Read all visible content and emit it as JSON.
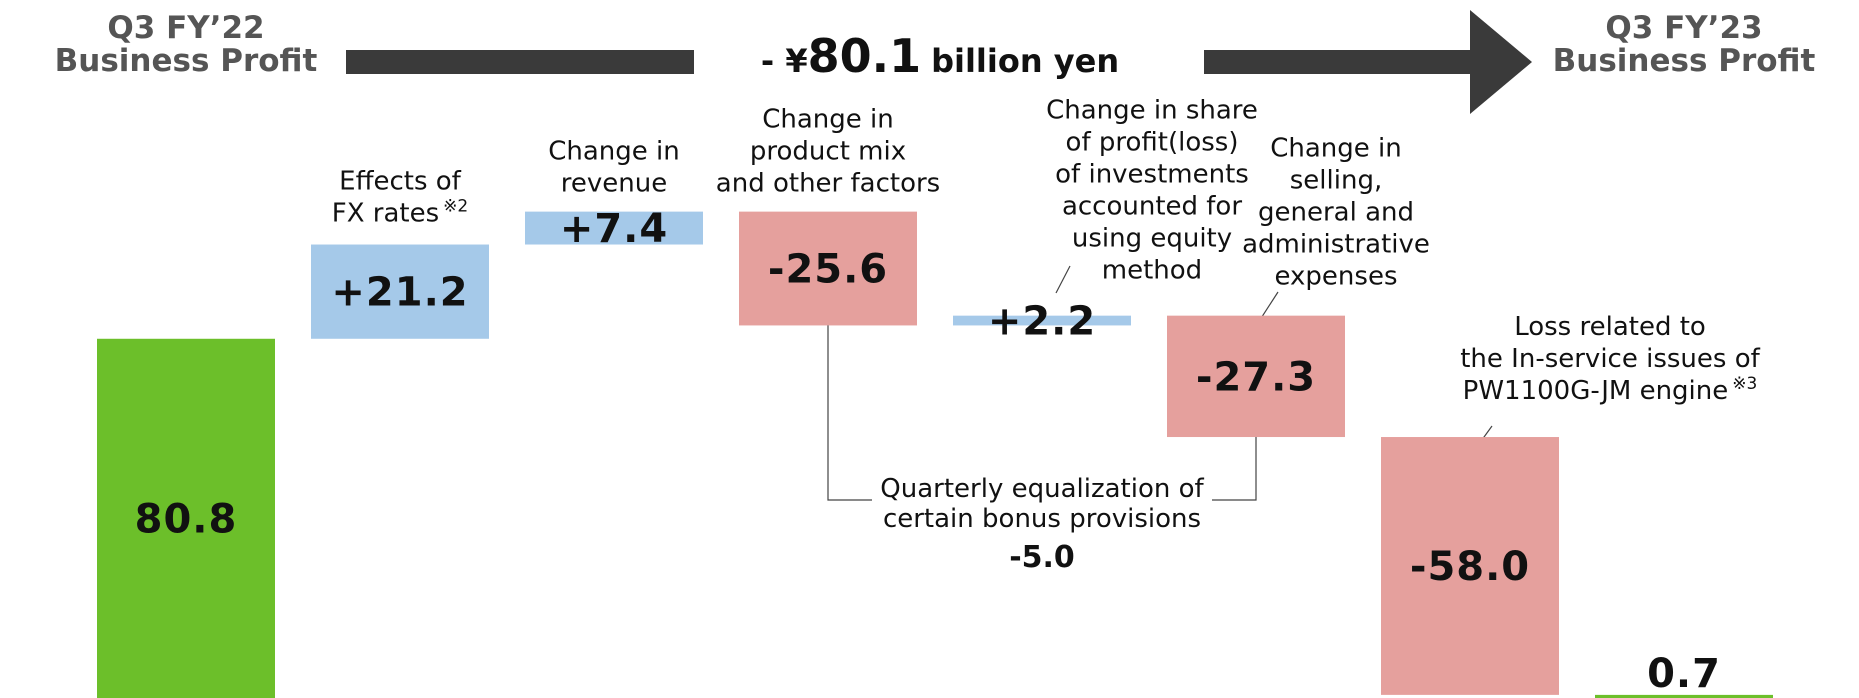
{
  "chart_data": {
    "type": "waterfall",
    "summary": {
      "prefix": "- ¥",
      "amount": "80.1",
      "unit": "billion yen"
    },
    "categories": [
      [
        "Q3 FY’22",
        "Business Profit"
      ],
      [
        "Effects of",
        "FX rates"
      ],
      [
        "Change in",
        "revenue"
      ],
      [
        "Change in",
        "product mix",
        "and other factors"
      ],
      [
        "Change in share",
        "of profit(loss)",
        "of investments",
        "accounted for",
        "using equity",
        "method"
      ],
      [
        "Change in",
        "selling,",
        "general and",
        "administrative",
        "expenses"
      ],
      [
        "Loss related to",
        "the In-service issues of",
        "PW1100G-JM engine"
      ],
      [
        "Q3 FY’23",
        "Business Profit"
      ]
    ],
    "footnote_marks": [
      null,
      "※2",
      null,
      null,
      null,
      null,
      "※3",
      null
    ],
    "measure": [
      "absolute",
      "relative",
      "relative",
      "relative",
      "relative",
      "relative",
      "relative",
      "total"
    ],
    "values": [
      80.8,
      21.2,
      7.4,
      -25.6,
      2.2,
      -27.3,
      -58.0,
      0.7
    ],
    "value_labels": [
      "80.8",
      "+21.2",
      "+7.4",
      "-25.6",
      "+2.2",
      "-27.3",
      "-58.0",
      "0.7"
    ],
    "colors": {
      "total": "#6cbf2a",
      "increase": "#a5c9e9",
      "decrease": "#e5a09d"
    },
    "annotation": {
      "text": [
        "Quarterly equalization of",
        "certain bonus provisions"
      ],
      "value": -5.0,
      "value_label": "-5.0"
    },
    "ylim": [
      0,
      157
    ]
  }
}
